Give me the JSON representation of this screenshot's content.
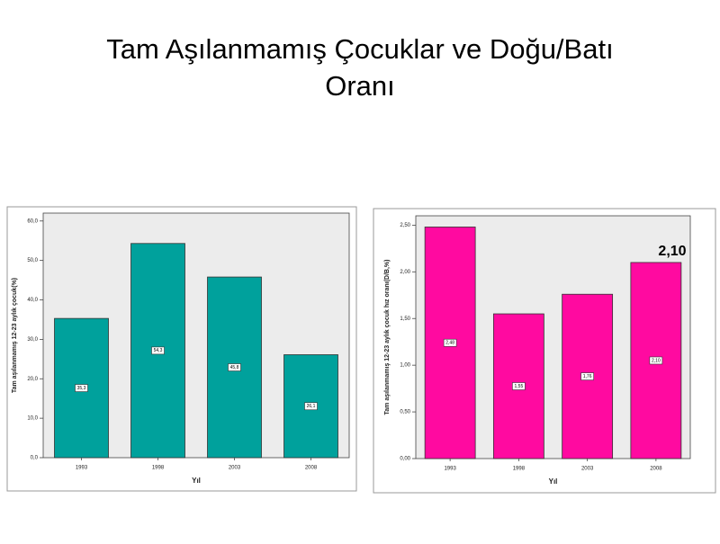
{
  "title": "Tam Aşılanmamış Çocuklar ve Doğu/Batı Oranı",
  "chart_data": [
    {
      "type": "bar",
      "categories": [
        "1993",
        "1998",
        "2003",
        "2008"
      ],
      "values": [
        35.3,
        54.3,
        45.8,
        26.1
      ],
      "value_labels": [
        "35,3",
        "54,3",
        "45,8",
        "26,1"
      ],
      "color": "#00a19c",
      "ylim": [
        0,
        62
      ],
      "yticks": [
        {
          "value": 0,
          "label": "0,0"
        },
        {
          "value": 10,
          "label": "10,0"
        },
        {
          "value": 20,
          "label": "20,0"
        },
        {
          "value": 30,
          "label": "30,0"
        },
        {
          "value": 40,
          "label": "40,0"
        },
        {
          "value": 50,
          "label": "50,0"
        },
        {
          "value": 60,
          "label": "60,0"
        }
      ],
      "xlabel": "Yıl",
      "ylabel": "Tam aşılanmamış 12-23 aylık çocuk(%)"
    },
    {
      "type": "bar",
      "categories": [
        "1993",
        "1998",
        "2003",
        "2008"
      ],
      "values": [
        2.48,
        1.55,
        1.76,
        2.1
      ],
      "value_labels": [
        "2,48",
        "1,55",
        "1,76",
        "2,10"
      ],
      "color": "#ff0aa0",
      "ylim": [
        0,
        2.6
      ],
      "yticks": [
        {
          "value": 0,
          "label": "0,00"
        },
        {
          "value": 0.5,
          "label": "0,50"
        },
        {
          "value": 1,
          "label": "1,00"
        },
        {
          "value": 1.5,
          "label": "1,50"
        },
        {
          "value": 2,
          "label": "2,00"
        },
        {
          "value": 2.5,
          "label": "2,50"
        }
      ],
      "xlabel": "Yıl",
      "ylabel": "Tam aşılanmamış 12-23 aylık çocuk hız oranı(D/B,%)",
      "annotation": "2,10"
    }
  ]
}
